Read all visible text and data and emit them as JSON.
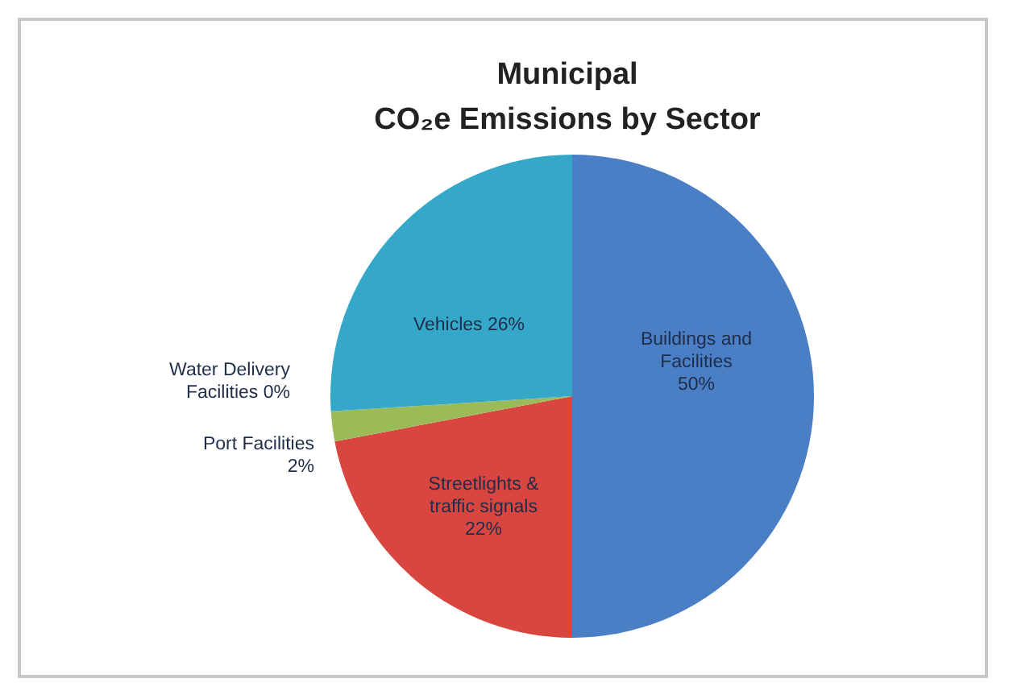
{
  "chart_data": {
    "type": "pie",
    "title": "Municipal\nCO₂e Emissions by Sector",
    "categories": [
      "Buildings and Facilities",
      "Streetlights & traffic signals",
      "Port Facilities",
      "Water Delivery Facilities",
      "Vehicles"
    ],
    "values": [
      50,
      22,
      2,
      0,
      26
    ],
    "colors": [
      "#4a7fc6",
      "#d9453f",
      "#9bbb59",
      "#8064a2",
      "#35a8c9"
    ],
    "value_labels": [
      "50%",
      "22%",
      "2%",
      "0%",
      "26%"
    ],
    "legend": false
  }
}
